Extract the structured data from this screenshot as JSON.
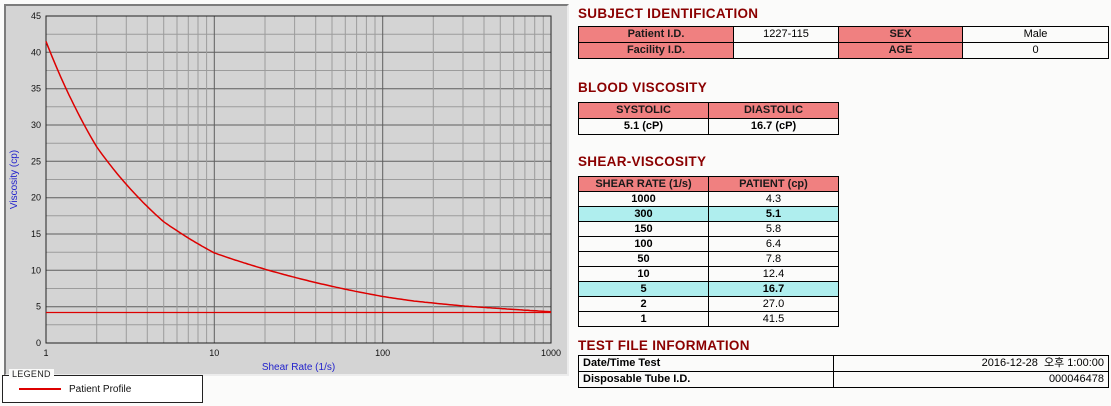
{
  "chart_data": {
    "type": "line",
    "title": "",
    "xlabel": "Shear Rate (1/s)",
    "ylabel": "Viscosity (cp)",
    "x_scale": "log",
    "xlim": [
      1,
      1000
    ],
    "ylim": [
      0,
      45
    ],
    "x_ticks": [
      1,
      10,
      100,
      1000
    ],
    "y_ticks": [
      0,
      5,
      10,
      15,
      20,
      25,
      30,
      35,
      40,
      45
    ],
    "grid": "on",
    "series": [
      {
        "name": "Patient Profile",
        "color": "#dd0000",
        "x": [
          1,
          2,
          5,
          10,
          50,
          100,
          150,
          300,
          1000
        ],
        "y": [
          41.5,
          27.0,
          16.7,
          12.4,
          7.8,
          6.4,
          5.8,
          5.1,
          4.3
        ]
      },
      {
        "name": "asymptote-line",
        "color": "#dd0000",
        "type": "hline",
        "y": 4.2
      }
    ],
    "legend": {
      "title": "LEGEND",
      "position": "bottom-left",
      "entries": [
        {
          "label": "Patient Profile",
          "color": "#dd0000"
        }
      ]
    }
  },
  "sections": {
    "subject": {
      "title": "SUBJECT IDENTIFICATION",
      "rows": [
        {
          "label1": "Patient I.D.",
          "value1": "1227-115",
          "label2": "SEX",
          "value2": "Male"
        },
        {
          "label1": "Facility I.D.",
          "value1": "",
          "label2": "AGE",
          "value2": "0"
        }
      ]
    },
    "blood": {
      "title": "BLOOD VISCOSITY",
      "headers": [
        "SYSTOLIC",
        "DIASTOLIC"
      ],
      "values": [
        "5.1 (cP)",
        "16.7 (cP)"
      ]
    },
    "shear": {
      "title": "SHEAR-VISCOSITY",
      "headers": [
        "SHEAR RATE (1/s)",
        "PATIENT (cp)"
      ],
      "rows": [
        {
          "rate": "1000",
          "value": "4.3",
          "highlight": false
        },
        {
          "rate": "300",
          "value": "5.1",
          "highlight": true
        },
        {
          "rate": "150",
          "value": "5.8",
          "highlight": false
        },
        {
          "rate": "100",
          "value": "6.4",
          "highlight": false
        },
        {
          "rate": "50",
          "value": "7.8",
          "highlight": false
        },
        {
          "rate": "10",
          "value": "12.4",
          "highlight": false
        },
        {
          "rate": "5",
          "value": "16.7",
          "highlight": true
        },
        {
          "rate": "2",
          "value": "27.0",
          "highlight": false
        },
        {
          "rate": "1",
          "value": "41.5",
          "highlight": false
        }
      ]
    },
    "test_file": {
      "title": "TEST FILE INFORMATION",
      "rows": [
        {
          "label": "Date/Time Test",
          "value": "2016-12-28  오후 1:00:00"
        },
        {
          "label": "Disposable Tube I.D.",
          "value": "000046478"
        }
      ]
    }
  },
  "colors": {
    "section_title": "#8b0000",
    "table_header_bg": "#f08080",
    "highlight_bg": "#afeeee",
    "chart_line": "#dd0000",
    "axis_title": "#2222cc",
    "panel_bg": "#d4d4d4",
    "grid_minor": "#9c9c9c",
    "grid_major": "#5e5e5e"
  }
}
